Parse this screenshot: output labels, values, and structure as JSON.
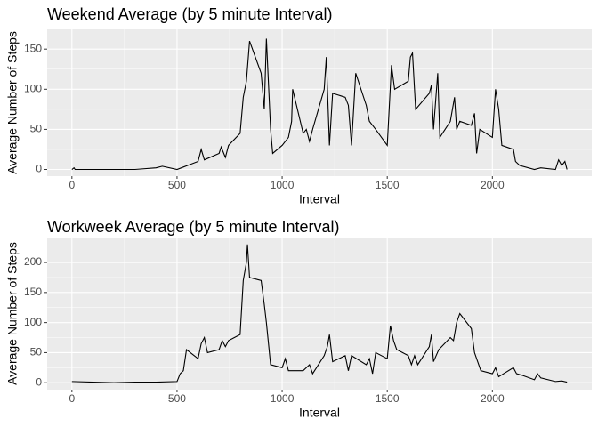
{
  "chart_data": [
    {
      "type": "line",
      "title": "Weekend Average (by 5 minute Interval)",
      "x_label": "Interval",
      "y_label": "Average Number of Steps",
      "color": "#000000",
      "grid": true,
      "minor_grid": true,
      "x": [
        0,
        10,
        15,
        100,
        200,
        300,
        400,
        430,
        500,
        530,
        550,
        600,
        615,
        630,
        700,
        710,
        730,
        745,
        800,
        815,
        830,
        845,
        900,
        915,
        925,
        945,
        955,
        1000,
        1030,
        1045,
        1050,
        1100,
        1115,
        1130,
        1145,
        1200,
        1210,
        1225,
        1240,
        1300,
        1315,
        1330,
        1350,
        1400,
        1415,
        1445,
        1500,
        1520,
        1535,
        1600,
        1610,
        1620,
        1635,
        1700,
        1710,
        1720,
        1740,
        1750,
        1800,
        1820,
        1830,
        1845,
        1900,
        1915,
        1925,
        1940,
        2000,
        2015,
        2030,
        2045,
        2100,
        2110,
        2130,
        2200,
        2230,
        2300,
        2315,
        2330,
        2345,
        2355
      ],
      "values": [
        0,
        2,
        0,
        0,
        0,
        0,
        2,
        4,
        0,
        3,
        5,
        10,
        25,
        12,
        20,
        28,
        15,
        30,
        45,
        90,
        110,
        160,
        120,
        75,
        163,
        50,
        20,
        30,
        40,
        60,
        100,
        45,
        50,
        35,
        50,
        100,
        140,
        30,
        95,
        90,
        80,
        30,
        120,
        80,
        60,
        50,
        30,
        130,
        100,
        110,
        140,
        145,
        75,
        95,
        105,
        50,
        120,
        40,
        60,
        90,
        50,
        60,
        55,
        70,
        20,
        50,
        40,
        100,
        75,
        30,
        25,
        10,
        5,
        0,
        2,
        0,
        12,
        5,
        10,
        0
      ],
      "xlim": [
        -117.75,
        2472.75
      ],
      "xticks": [
        0,
        500,
        1000,
        1500,
        2000
      ],
      "ylim": [
        -8.3,
        174.6
      ],
      "yticks": [
        0,
        50,
        100,
        150
      ]
    },
    {
      "type": "line",
      "title": "Workweek Average (by 5 minute Interval)",
      "x_label": "Interval",
      "y_label": "Average Number of Steps",
      "color": "#000000",
      "grid": true,
      "minor_grid": true,
      "x": [
        0,
        100,
        200,
        300,
        400,
        500,
        515,
        530,
        545,
        600,
        615,
        630,
        645,
        700,
        715,
        730,
        745,
        800,
        815,
        830,
        835,
        845,
        900,
        915,
        925,
        945,
        1000,
        1015,
        1030,
        1100,
        1130,
        1145,
        1200,
        1215,
        1225,
        1240,
        1300,
        1315,
        1330,
        1400,
        1415,
        1430,
        1445,
        1500,
        1515,
        1530,
        1545,
        1600,
        1615,
        1630,
        1645,
        1700,
        1710,
        1720,
        1745,
        1800,
        1815,
        1830,
        1845,
        1900,
        1915,
        1930,
        1945,
        2000,
        2015,
        2030,
        2100,
        2115,
        2145,
        2200,
        2215,
        2230,
        2300,
        2330,
        2355
      ],
      "values": [
        2,
        1,
        0,
        1,
        1,
        2,
        15,
        20,
        55,
        40,
        65,
        75,
        50,
        55,
        70,
        60,
        70,
        80,
        170,
        200,
        230,
        175,
        170,
        130,
        100,
        30,
        25,
        40,
        20,
        20,
        30,
        15,
        45,
        60,
        80,
        35,
        45,
        20,
        45,
        30,
        40,
        15,
        50,
        40,
        95,
        70,
        55,
        45,
        30,
        45,
        30,
        60,
        80,
        35,
        55,
        75,
        70,
        100,
        115,
        90,
        50,
        35,
        20,
        15,
        25,
        10,
        25,
        15,
        12,
        5,
        15,
        8,
        2,
        3,
        1
      ],
      "xlim": [
        -117.75,
        2472.75
      ],
      "xticks": [
        0,
        500,
        1000,
        1500,
        2000
      ],
      "ylim": [
        -11.5,
        241.5
      ],
      "yticks": [
        0,
        50,
        100,
        150,
        200
      ]
    }
  ]
}
